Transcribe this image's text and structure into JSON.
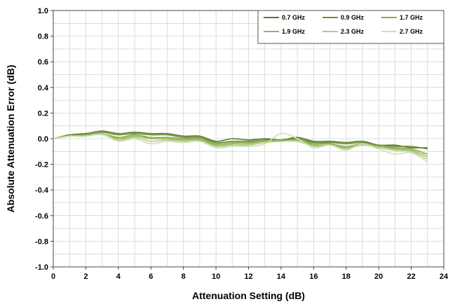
{
  "chart_data": {
    "type": "line",
    "title": "",
    "xlabel": "Attenuation Setting (dB)",
    "ylabel": "Absolute Attenuation Error (dB)",
    "xlim": [
      0,
      24
    ],
    "ylim": [
      -1.0,
      1.0
    ],
    "x_ticks": [
      "0",
      "2",
      "4",
      "6",
      "8",
      "10",
      "12",
      "14",
      "16",
      "18",
      "20",
      "22",
      "24"
    ],
    "y_ticks": [
      "1.0",
      "0.8",
      "0.6",
      "0.4",
      "0.2",
      "0.0",
      "-0.2",
      "-0.4",
      "-0.6",
      "-0.8",
      "-1.0"
    ],
    "grid": true,
    "legend_position": "top-right",
    "x": [
      0,
      1,
      2,
      3,
      4,
      5,
      6,
      7,
      8,
      9,
      10,
      11,
      12,
      13,
      14,
      15,
      16,
      17,
      18,
      19,
      20,
      21,
      22,
      23
    ],
    "series": [
      {
        "name": "0.7 GHz",
        "color": "#5a7a2a",
        "values": [
          0.0,
          0.03,
          0.04,
          0.06,
          0.04,
          0.05,
          0.04,
          0.04,
          0.02,
          0.02,
          -0.02,
          0.0,
          -0.01,
          0.0,
          -0.01,
          0.01,
          -0.02,
          -0.02,
          -0.03,
          -0.02,
          -0.05,
          -0.05,
          -0.07,
          -0.07
        ]
      },
      {
        "name": "0.9 GHz",
        "color": "#6e8e34",
        "values": [
          0.0,
          0.03,
          0.03,
          0.05,
          0.03,
          0.04,
          0.03,
          0.03,
          0.01,
          0.01,
          -0.03,
          -0.02,
          -0.02,
          -0.01,
          -0.01,
          0.0,
          -0.03,
          -0.03,
          -0.04,
          -0.03,
          -0.05,
          -0.06,
          -0.06,
          -0.08
        ]
      },
      {
        "name": "1.7 GHz",
        "color": "#8aa84a",
        "values": [
          0.0,
          0.02,
          0.03,
          0.04,
          0.01,
          0.03,
          0.01,
          0.01,
          0.0,
          0.0,
          -0.04,
          -0.03,
          -0.03,
          -0.02,
          -0.02,
          -0.01,
          -0.04,
          -0.04,
          -0.06,
          -0.04,
          -0.06,
          -0.07,
          -0.08,
          -0.12
        ]
      },
      {
        "name": "1.9 GHz",
        "color": "#93b65a",
        "values": [
          0.0,
          0.02,
          0.02,
          0.04,
          0.0,
          0.02,
          0.0,
          0.0,
          -0.01,
          -0.01,
          -0.05,
          -0.04,
          -0.04,
          -0.02,
          -0.02,
          -0.01,
          -0.05,
          -0.05,
          -0.07,
          -0.05,
          -0.06,
          -0.08,
          -0.09,
          -0.14
        ]
      },
      {
        "name": "2.3 GHz",
        "color": "#b3cc87",
        "values": [
          0.0,
          0.02,
          0.02,
          0.04,
          -0.01,
          0.01,
          -0.02,
          -0.01,
          -0.02,
          -0.02,
          -0.06,
          -0.05,
          -0.05,
          -0.03,
          -0.02,
          -0.02,
          -0.06,
          -0.05,
          -0.08,
          -0.05,
          -0.07,
          -0.09,
          -0.1,
          -0.16
        ]
      },
      {
        "name": "2.7 GHz",
        "color": "#cfdfb0",
        "values": [
          0.0,
          0.02,
          0.02,
          0.03,
          -0.02,
          0.0,
          -0.04,
          -0.02,
          -0.03,
          -0.02,
          -0.07,
          -0.06,
          -0.06,
          -0.04,
          0.04,
          0.0,
          -0.07,
          -0.05,
          -0.09,
          -0.04,
          -0.08,
          -0.12,
          -0.11,
          -0.18
        ]
      }
    ]
  }
}
